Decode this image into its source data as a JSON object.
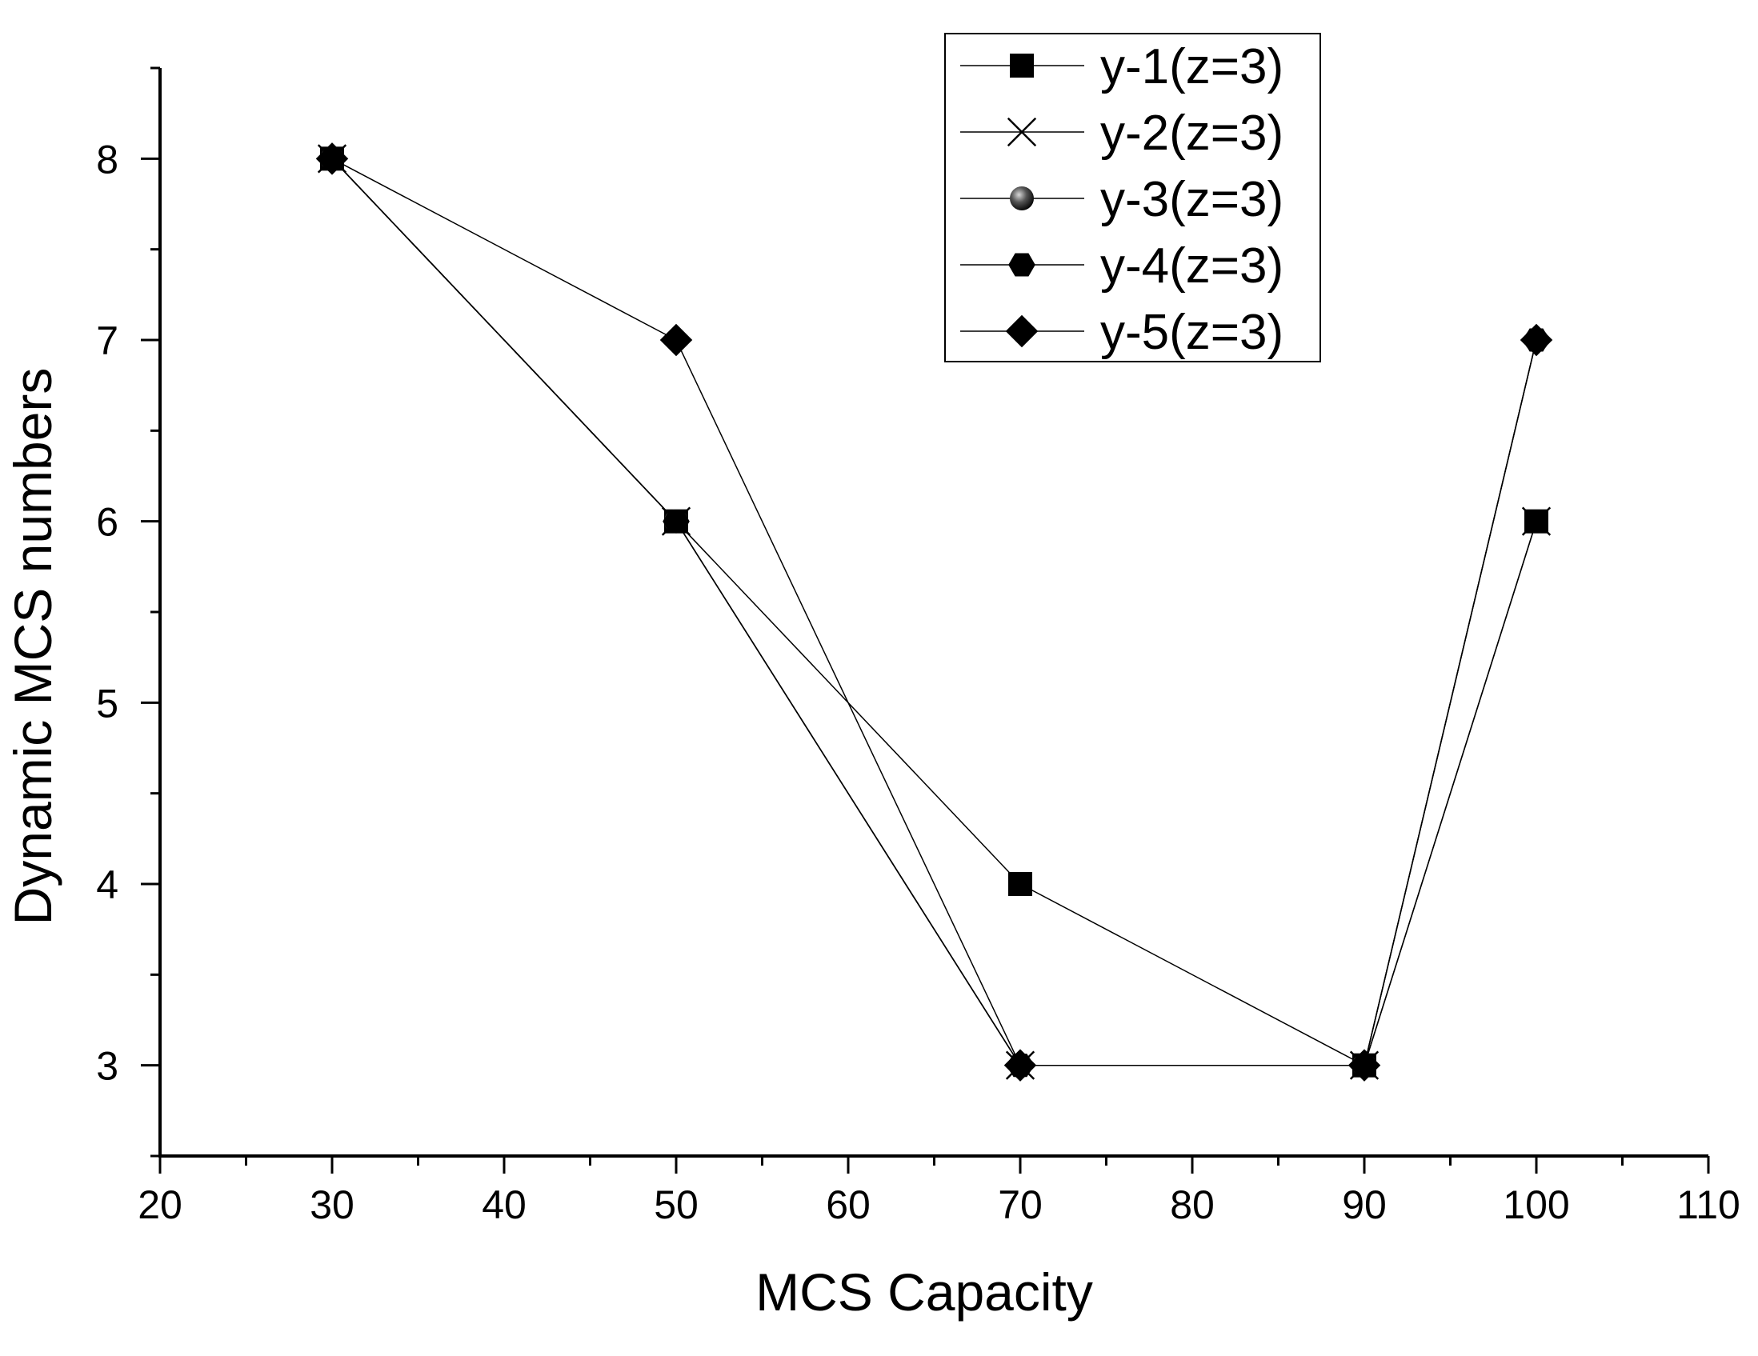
{
  "chart_data": {
    "type": "line",
    "title": "",
    "xlabel": "MCS Capacity",
    "ylabel": "Dynamic MCS numbers",
    "x": [
      30,
      50,
      70,
      90,
      100
    ],
    "xlim": [
      20,
      110
    ],
    "ylim": [
      2.5,
      8.5
    ],
    "xticks": [
      20,
      30,
      40,
      50,
      60,
      70,
      80,
      90,
      100,
      110
    ],
    "xtick_labels": [
      "20",
      "30",
      "40",
      "50",
      "60",
      "70",
      "80",
      "90",
      "100",
      "110"
    ],
    "xminor_ticks": [
      25,
      35,
      45,
      55,
      65,
      75,
      85,
      95,
      105
    ],
    "yticks": [
      3,
      4,
      5,
      6,
      7,
      8
    ],
    "ytick_labels": [
      "3",
      "4",
      "5",
      "6",
      "7",
      "8"
    ],
    "yminor_ticks": [
      2.5,
      3.5,
      4.5,
      5.5,
      6.5,
      7.5,
      8.5
    ],
    "grid": false,
    "legend_position": "top-center",
    "series": [
      {
        "name": "y-1(z=3)",
        "marker": "square",
        "values": [
          8,
          6,
          4,
          3,
          6
        ]
      },
      {
        "name": "y-2(z=3)",
        "marker": "x",
        "values": [
          8,
          6,
          3,
          3,
          6
        ]
      },
      {
        "name": "y-3(z=3)",
        "marker": "sphere",
        "values": [
          8,
          6,
          3,
          3,
          7
        ]
      },
      {
        "name": "y-4(z=3)",
        "marker": "hexagon",
        "values": [
          8,
          6,
          3,
          3,
          7
        ]
      },
      {
        "name": "y-5(z=3)",
        "marker": "diamond",
        "values": [
          8,
          7,
          3,
          3,
          7
        ]
      }
    ],
    "colors": {
      "line": "#000000",
      "marker": "#000000",
      "background": "#ffffff"
    }
  }
}
